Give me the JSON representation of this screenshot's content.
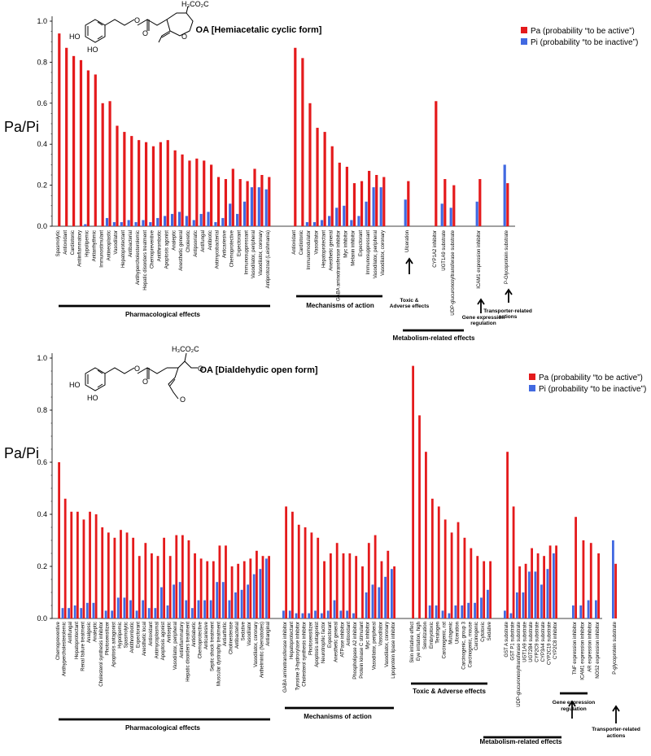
{
  "chart_data": [
    {
      "type": "bar",
      "title": "OA [Hemiacetalic cyclic form]",
      "ylabel": "Pa/Pi",
      "ylim": [
        0,
        1.0
      ],
      "yticks": [
        "0.0",
        "0.2",
        "0.4",
        "0.6",
        "0.8",
        "1.0"
      ],
      "legend": [
        {
          "name": "Pa (probability “to be active”)",
          "color": "#e41a1c"
        },
        {
          "name": "Pi (probability “to be inactive”)",
          "color": "#4169e1"
        }
      ],
      "groups": [
        {
          "label": "Pharmacological effects",
          "categories": [
            "Spasmolytic",
            "Antioxidant",
            "Cardiotonic",
            "Antiinflammatory",
            "Hypolipemic",
            "Antiarrhythmic",
            "Immunostimulant",
            "Antineoplastic",
            "Vasodilator",
            "Hepatoprotectant",
            "Antibacterial",
            "Antihypercholesterolemic",
            "Hepatic disorders treatment",
            "Chemopreventive",
            "Antithrombotic",
            "Apoptosis agonist",
            "Analeptic",
            "Anesthetic general",
            "Choleretic",
            "Antipsoriatic",
            "Antifungal",
            "Antibiotic",
            "Antimycobacterial",
            "Anticariesive",
            "Chemoprotective",
            "Expectorant",
            "Immunosuppressant",
            "Vasodilator, peripheral",
            "Vasodilator, coronary",
            "Antiprotozoal (Leishmania)"
          ],
          "pa": [
            0.94,
            0.87,
            0.83,
            0.81,
            0.76,
            0.74,
            0.6,
            0.61,
            0.49,
            0.46,
            0.44,
            0.42,
            0.41,
            0.39,
            0.41,
            0.42,
            0.37,
            0.35,
            0.32,
            0.33,
            0.32,
            0.3,
            0.24,
            0.23,
            0.28,
            0.23,
            0.22,
            0.28,
            0.25,
            0.24
          ],
          "pi": [
            0.0,
            0.0,
            0.0,
            0.0,
            0.01,
            0.0,
            0.0,
            0.04,
            0.02,
            0.02,
            0.03,
            0.02,
            0.03,
            0.02,
            0.04,
            0.05,
            0.06,
            0.07,
            0.05,
            0.03,
            0.06,
            0.07,
            0.02,
            0.04,
            0.11,
            0.06,
            0.12,
            0.19,
            0.19,
            0.18
          ]
        },
        {
          "label": "Mechanisms of action",
          "categories": [
            "Antioxidant",
            "Cardiotonic",
            "Immunomodulator",
            "Vasodilator",
            "Hepatoprotectant",
            "Anesthetic general",
            "GABA aminotransferase inhibitor",
            "Myc inhibitor",
            "Melanin inhibitor",
            "Expectorant",
            "Immunosuppressant",
            "Vasodilator, peripheral",
            "Vasodilator, coronary"
          ],
          "pa": [
            0.87,
            0.82,
            0.6,
            0.48,
            0.46,
            0.39,
            0.31,
            0.29,
            0.21,
            0.22,
            0.27,
            0.25,
            0.24
          ],
          "pi": [
            0.0,
            0.0,
            0.02,
            0.02,
            0.03,
            0.05,
            0.09,
            0.1,
            0.03,
            0.05,
            0.12,
            0.19,
            0.19
          ]
        },
        {
          "label": "Toxic & Adverse effects",
          "categories": [
            "Ulceration"
          ],
          "pa": [
            0.22
          ],
          "pi": [
            0.13
          ]
        },
        {
          "label": "Metabolism-related effects",
          "categories": [
            "CYP1A2 inhibitor",
            "UGT1A9 substrate",
            "UDP-glucuronosyltransferase substrate"
          ],
          "pa": [
            0.61,
            0.23,
            0.2
          ],
          "pi": [
            0.0,
            0.11,
            0.09
          ]
        },
        {
          "label": "Gene expression regulation",
          "categories": [
            "ICAM1 expression inhibitor"
          ],
          "pa": [
            0.23
          ],
          "pi": [
            0.12
          ]
        },
        {
          "label": "Transporter-related actions",
          "categories": [
            "P-Glycoprotein substrate"
          ],
          "pa": [
            0.21
          ],
          "pi": [
            0.3
          ]
        }
      ]
    },
    {
      "type": "bar",
      "title": "OA [Dialdehydic open form]",
      "ylabel": "Pa/Pi",
      "ylim": [
        0,
        1.0
      ],
      "yticks": [
        "0.0",
        "0.2",
        "0.4",
        "0.6",
        "0.8",
        "1.0"
      ],
      "legend": [
        {
          "name": "Pa (probability “to be active”)",
          "color": "#e41a1c"
        },
        {
          "name": "Pi (probability “to be inactive”)",
          "color": "#4169e1"
        }
      ],
      "groups": [
        {
          "label": "Pharmacological effects",
          "categories": [
            "Chemopreventive",
            "Antihypercholesterolemic",
            "Antifungal",
            "Hepatoprotectant",
            "Renal failure treatment",
            "Analgesic",
            "Analeptic",
            "Cholesterol synthesis inhibitor",
            "Photosensitizer",
            "Apoptosis antagonist",
            "Hypolipemic",
            "Spasmolytic",
            "Antithrombotic",
            "Expectorant",
            "Anesthetic local",
            "Antioxidant",
            "Antimycoplasmal",
            "Apoptosis agonist",
            "Antiseptic",
            "Vasodilator, peripheral",
            "Antiinflammatory",
            "Hepatic disorders treatment",
            "Antidiabetic",
            "Chemoprotective",
            "Anticariesive",
            "Septic shock treatment",
            "Muscular dystrophy treatment",
            "Antiarthritic",
            "Cholinesterase",
            "Antibacterial",
            "Sedative",
            "Vasodilator",
            "Vasodilator, coronary",
            "Anthelmintic (Nematodes)",
            "Antianginal"
          ],
          "pa": [
            0.6,
            0.46,
            0.41,
            0.41,
            0.38,
            0.41,
            0.4,
            0.35,
            0.33,
            0.31,
            0.34,
            0.33,
            0.31,
            0.24,
            0.29,
            0.25,
            0.24,
            0.31,
            0.24,
            0.32,
            0.32,
            0.3,
            0.25,
            0.23,
            0.22,
            0.22,
            0.28,
            0.28,
            0.2,
            0.21,
            0.22,
            0.23,
            0.26,
            0.24,
            0.24
          ],
          "pi": [
            0.0,
            0.04,
            0.04,
            0.05,
            0.04,
            0.06,
            0.06,
            0.0,
            0.03,
            0.03,
            0.08,
            0.08,
            0.07,
            0.03,
            0.07,
            0.04,
            0.04,
            0.12,
            0.05,
            0.13,
            0.14,
            0.07,
            0.04,
            0.07,
            0.07,
            0.07,
            0.14,
            0.14,
            0.07,
            0.1,
            0.11,
            0.13,
            0.17,
            0.19,
            0.23
          ]
        },
        {
          "label": "Mechanisms of action",
          "categories": [
            "GABA aminotransferase inhibitor",
            "Hepatoprotectant",
            "Tyrosine 3-hydroxylase inhibitor",
            "Cholesterol synthesis inhibitor",
            "Photosensitizer",
            "Apoptosis antagonist",
            "Neurotrophic factor",
            "Expectorant",
            "Anesthetic general",
            "ATPase inhibitor",
            "Antioxidant",
            "Phospholipase A2 inhibitor",
            "Protein kinase C stimulant",
            "Myc inhibitor",
            "Vasodilator, peripheral",
            "Vasodilator",
            "Vasodilator, coronary",
            "Lipoprotein lipase inhibitor"
          ],
          "pa": [
            0.43,
            0.41,
            0.36,
            0.35,
            0.33,
            0.31,
            0.22,
            0.25,
            0.29,
            0.25,
            0.25,
            0.24,
            0.2,
            0.29,
            0.32,
            0.22,
            0.26,
            0.2
          ],
          "pi": [
            0.03,
            0.03,
            0.02,
            0.02,
            0.02,
            0.03,
            0.02,
            0.03,
            0.07,
            0.03,
            0.03,
            0.02,
            0.0,
            0.1,
            0.13,
            0.12,
            0.16,
            0.19
          ]
        },
        {
          "label": "Toxic & Adverse effects",
          "categories": [
            "Skin irritative effect",
            "Eye irritation, high",
            "Sensitization",
            "Embryotoxic",
            "Teratogen",
            "Carcinogenic, rat",
            "Mutagenic",
            "Ulceration",
            "Carcinogenic, group 3",
            "Carcinogenic, mouse",
            "Carcinogenic",
            "Cytotoxic",
            "Sedative"
          ],
          "pa": [
            0.97,
            0.78,
            0.64,
            0.46,
            0.43,
            0.38,
            0.33,
            0.37,
            0.31,
            0.27,
            0.24,
            0.22,
            0.22
          ],
          "pi": [
            0.0,
            0.0,
            0.0,
            0.05,
            0.05,
            0.03,
            0.02,
            0.05,
            0.05,
            0.06,
            0.06,
            0.08,
            0.11
          ]
        },
        {
          "label": "Metabolism-related effects",
          "categories": [
            "GST A substrate",
            "GST P1 substrate",
            "UDP-glucuronosyltransferase substrate",
            "UGT1A9 substrate",
            "UGT2B4 substrate",
            "CYP2C9 substrate",
            "CYP3A4 substrate",
            "CYP2C19 substrate",
            "CYP2C8 inhibitor"
          ],
          "pa": [
            0.64,
            0.43,
            0.2,
            0.21,
            0.27,
            0.25,
            0.24,
            0.28,
            0.28
          ],
          "pi": [
            0.03,
            0.02,
            0.1,
            0.1,
            0.18,
            0.18,
            0.13,
            0.19,
            0.25
          ]
        },
        {
          "label": "Gene expression regulation",
          "categories": [
            "TNF expression inhibitor",
            "ICAM1 expression inhibitor",
            "AR expression inhibitor",
            "NOS2 expression inhibitor"
          ],
          "pa": [
            0.39,
            0.3,
            0.29,
            0.25
          ],
          "pi": [
            0.05,
            0.05,
            0.07,
            0.07
          ]
        },
        {
          "label": "Transporter-related actions",
          "categories": [
            "P-glycoprotein substrate"
          ],
          "pa": [
            0.21
          ],
          "pi": [
            0.3
          ]
        }
      ]
    }
  ],
  "structures": [
    {
      "labels": [
        "H₃CO₂C",
        "HO",
        "HO",
        "O",
        "O",
        "O"
      ]
    },
    {
      "labels": [
        "H₃CO₂C",
        "HO",
        "HO",
        "O",
        "O",
        "O",
        "O"
      ]
    }
  ]
}
